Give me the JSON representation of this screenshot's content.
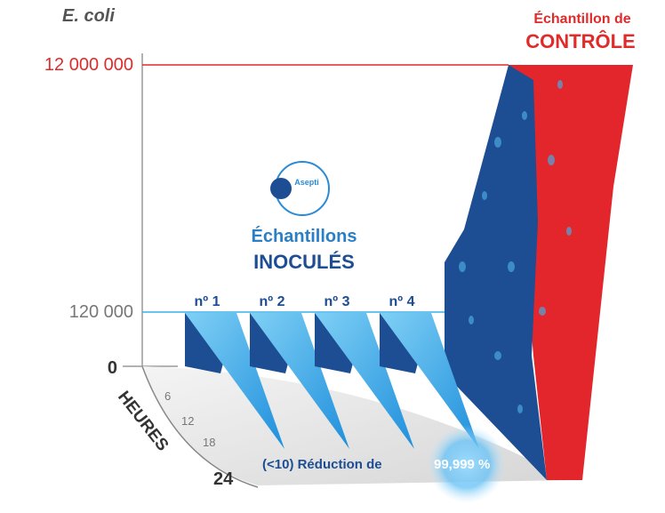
{
  "axis": {
    "y_label": "E. coli",
    "ticks": [
      "12 000 000",
      "120 000",
      "0"
    ],
    "time_label": "HEURES",
    "time_ticks": [
      "6",
      "12",
      "18",
      "24"
    ]
  },
  "control": {
    "line1": "Échantillon de",
    "line2": "CONTRÔLE"
  },
  "logo": {
    "text": "Asepti"
  },
  "inoculated": {
    "line1": "Échantillons",
    "line2": "INOCULÉS",
    "samples": [
      "nº 1",
      "nº 2",
      "nº 3",
      "nº 4"
    ]
  },
  "result": {
    "text": "(<10) Réduction de",
    "value": "99,999 %"
  }
}
